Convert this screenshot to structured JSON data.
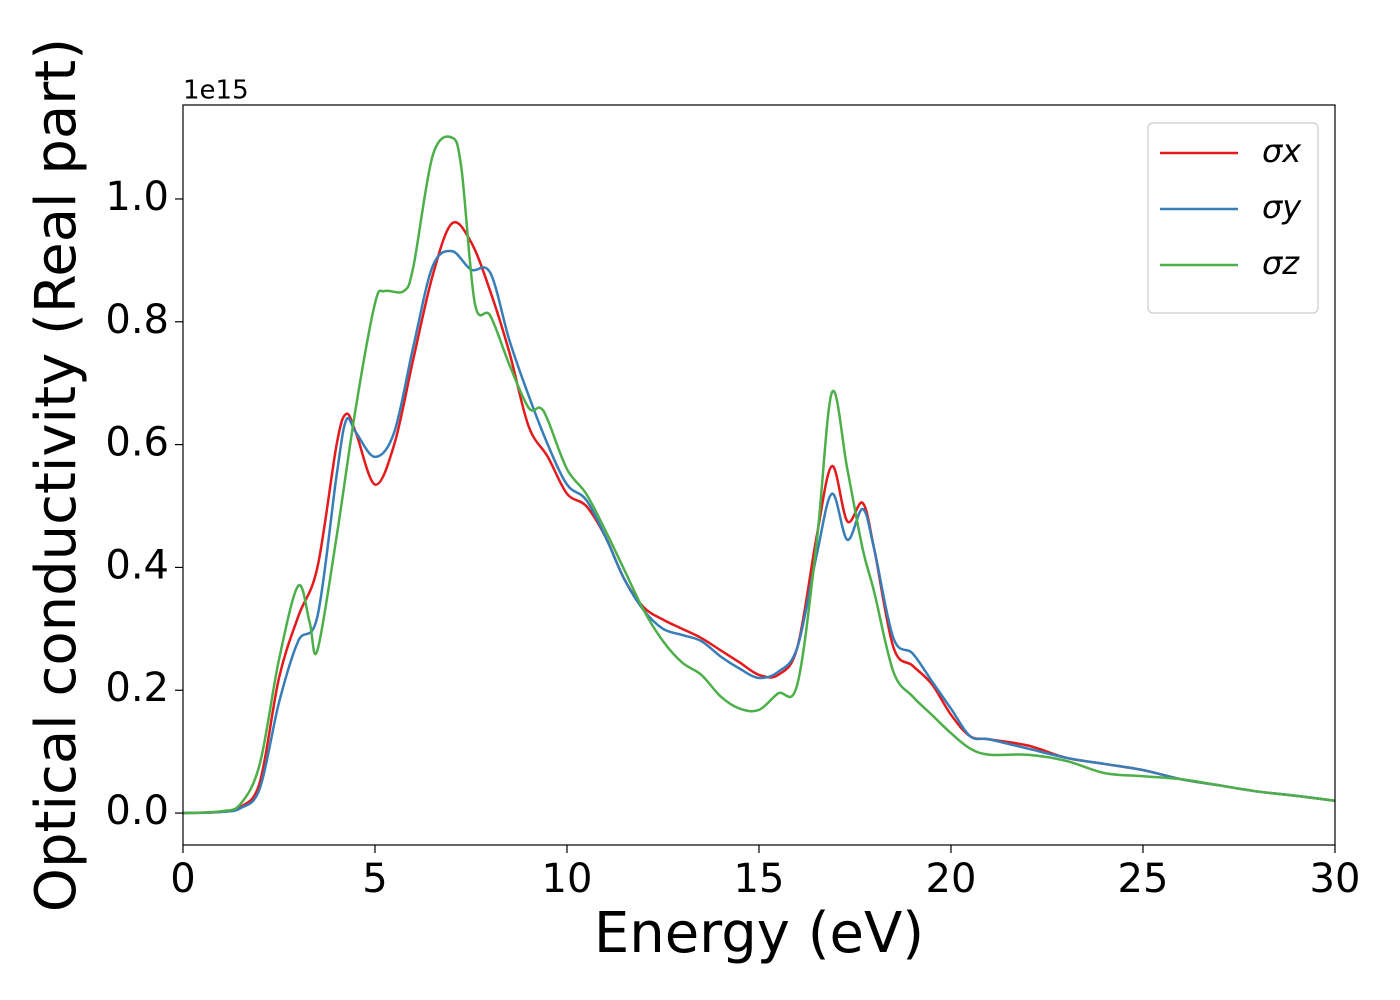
{
  "chart_data": {
    "type": "line",
    "xlabel": "Energy (eV)",
    "ylabel": "Optical conductivity (Real part)",
    "y_offset_label": "1e15",
    "xlim": [
      0,
      30
    ],
    "xticks": [
      0,
      5,
      10,
      15,
      20,
      25,
      30
    ],
    "ylim": [
      -0.052,
      1.153
    ],
    "yticks": [
      {
        "value": 0,
        "label": "0.0"
      },
      0.2,
      0.4,
      0.6,
      0.8,
      {
        "value": 1,
        "label": "1.0"
      }
    ],
    "grid": false,
    "legend": "upper right",
    "series": [
      {
        "name": "σx",
        "color": "#e41a1c",
        "x": [
          0,
          1,
          1.5,
          2,
          2.5,
          3,
          3.5,
          4,
          4.25,
          4.5,
          5,
          5.5,
          6,
          6.5,
          7,
          7.5,
          8,
          8.5,
          9,
          9.5,
          10,
          10.5,
          11,
          11.5,
          12,
          12.5,
          13,
          13.5,
          14,
          14.5,
          15,
          15.5,
          16,
          16.5,
          16.9,
          17.3,
          17.7,
          18,
          18.5,
          19,
          19.5,
          20,
          20.5,
          21,
          22,
          23,
          24,
          25,
          26,
          27,
          28,
          29,
          30
        ],
        "values": [
          0,
          0.002,
          0.01,
          0.05,
          0.22,
          0.32,
          0.4,
          0.6,
          0.65,
          0.62,
          0.535,
          0.6,
          0.74,
          0.875,
          0.96,
          0.93,
          0.85,
          0.75,
          0.63,
          0.58,
          0.52,
          0.5,
          0.45,
          0.38,
          0.335,
          0.315,
          0.3,
          0.285,
          0.265,
          0.245,
          0.225,
          0.225,
          0.27,
          0.45,
          0.565,
          0.475,
          0.505,
          0.43,
          0.27,
          0.24,
          0.21,
          0.16,
          0.125,
          0.12,
          0.11,
          0.09,
          0.08,
          0.07,
          0.055,
          0.045,
          0.035,
          0.028,
          0.02
        ]
      },
      {
        "name": "σy",
        "color": "#377eb8",
        "x": [
          0,
          1,
          1.5,
          2,
          2.5,
          3,
          3.5,
          4,
          4.25,
          4.5,
          5,
          5.5,
          6,
          6.5,
          7,
          7.5,
          8,
          8.5,
          9,
          9.5,
          10,
          10.5,
          11,
          11.5,
          12,
          12.5,
          13,
          13.5,
          14,
          14.5,
          15,
          15.5,
          16,
          16.5,
          16.9,
          17.3,
          17.7,
          18,
          18.5,
          19,
          19.5,
          20,
          20.5,
          21,
          22,
          23,
          24,
          25,
          26,
          27,
          28,
          29,
          30
        ],
        "values": [
          0,
          0.002,
          0.008,
          0.04,
          0.18,
          0.28,
          0.32,
          0.55,
          0.64,
          0.62,
          0.58,
          0.62,
          0.76,
          0.89,
          0.915,
          0.885,
          0.88,
          0.77,
          0.68,
          0.6,
          0.535,
          0.51,
          0.45,
          0.38,
          0.33,
          0.3,
          0.29,
          0.28,
          0.255,
          0.235,
          0.22,
          0.23,
          0.27,
          0.42,
          0.52,
          0.445,
          0.495,
          0.43,
          0.285,
          0.26,
          0.215,
          0.17,
          0.125,
          0.12,
          0.105,
          0.09,
          0.08,
          0.07,
          0.055,
          0.045,
          0.035,
          0.028,
          0.02
        ]
      },
      {
        "name": "σz",
        "color": "#4daf4a",
        "x": [
          0,
          1,
          1.5,
          2,
          2.5,
          3,
          3.3,
          3.5,
          4,
          4.5,
          5,
          5.25,
          5.75,
          6,
          6.5,
          7,
          7.25,
          7.6,
          8,
          8.5,
          9,
          9.3,
          9.5,
          10,
          10.5,
          11,
          11.5,
          12,
          12.5,
          13,
          13.5,
          14,
          14.5,
          15,
          15.5,
          16,
          16.5,
          16.9,
          17.3,
          17.7,
          18,
          18.5,
          19,
          19.5,
          20,
          20.5,
          21,
          22,
          23,
          24,
          25,
          26,
          27,
          28,
          29,
          30
        ],
        "values": [
          0,
          0.003,
          0.015,
          0.08,
          0.25,
          0.37,
          0.31,
          0.265,
          0.45,
          0.66,
          0.83,
          0.85,
          0.85,
          0.89,
          1.07,
          1.1,
          1.05,
          0.83,
          0.81,
          0.73,
          0.66,
          0.66,
          0.64,
          0.56,
          0.52,
          0.46,
          0.395,
          0.33,
          0.28,
          0.245,
          0.225,
          0.19,
          0.17,
          0.168,
          0.195,
          0.21,
          0.44,
          0.685,
          0.56,
          0.43,
          0.36,
          0.23,
          0.19,
          0.16,
          0.13,
          0.105,
          0.095,
          0.095,
          0.085,
          0.065,
          0.06,
          0.055,
          0.045,
          0.035,
          0.028,
          0.02
        ]
      }
    ]
  }
}
